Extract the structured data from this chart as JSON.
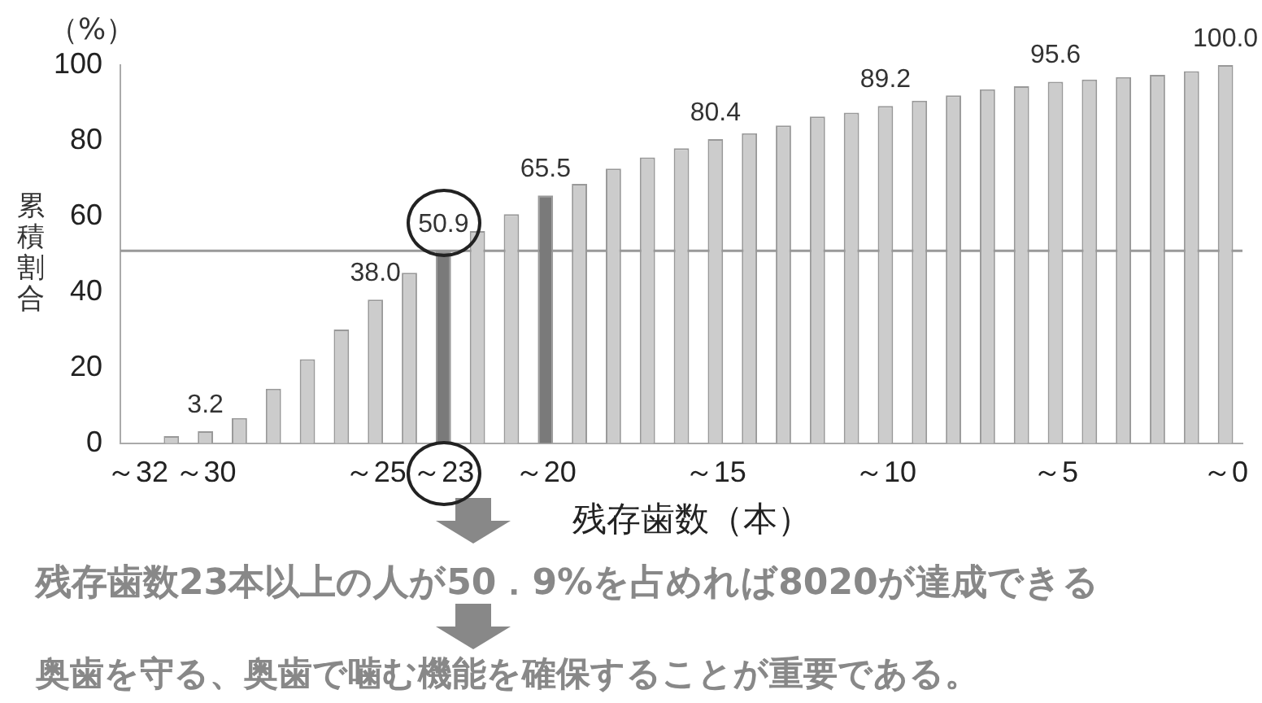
{
  "chart_data": {
    "type": "bar",
    "xlabel": "残存歯数（本）",
    "ylabel": "累積割合",
    "categories": [
      "～32",
      null,
      "～30",
      null,
      null,
      null,
      null,
      "～25",
      null,
      "～23",
      null,
      null,
      "～20",
      null,
      null,
      null,
      null,
      "～15",
      null,
      null,
      null,
      null,
      "～10",
      null,
      null,
      null,
      null,
      "～5",
      null,
      null,
      null,
      null,
      "～0"
    ],
    "values": [
      0,
      1.9,
      3.2,
      6.7,
      14.4,
      22.2,
      30.1,
      38.0,
      45.1,
      50.9,
      56.1,
      60.6,
      65.5,
      68.6,
      72.6,
      75.6,
      78.0,
      80.4,
      82.0,
      84.0,
      86.4,
      87.4,
      89.2,
      90.6,
      92.0,
      93.6,
      94.4,
      95.6,
      96.2,
      96.8,
      97.4,
      98.4,
      100.0
    ],
    "colors": [
      "#cccccc",
      "#cccccc",
      "#cccccc",
      "#cccccc",
      "#cccccc",
      "#cccccc",
      "#cccccc",
      "#cccccc",
      "#cccccc",
      "#7a7a7a",
      "#cccccc",
      "#cccccc",
      "#7a7a7a",
      "#cccccc",
      "#cccccc",
      "#cccccc",
      "#cccccc",
      "#cccccc",
      "#cccccc",
      "#cccccc",
      "#cccccc",
      "#cccccc",
      "#cccccc",
      "#cccccc",
      "#cccccc",
      "#cccccc",
      "#cccccc",
      "#cccccc",
      "#cccccc",
      "#cccccc",
      "#cccccc",
      "#cccccc",
      "#cccccc"
    ],
    "value_labels": [
      null,
      null,
      "3.2",
      null,
      null,
      null,
      null,
      "38.0",
      null,
      "50.9",
      null,
      null,
      "65.5",
      null,
      null,
      null,
      null,
      "80.4",
      null,
      null,
      null,
      null,
      "89.2",
      null,
      null,
      null,
      null,
      "95.6",
      null,
      null,
      null,
      null,
      "100.0"
    ],
    "ylim": [
      0,
      100
    ],
    "yticks": [
      0,
      20,
      40,
      60,
      80,
      100
    ],
    "grid": false,
    "legend": false,
    "ref_lines": [
      {
        "axis": "y",
        "value": 50.9,
        "color": "#999999"
      }
    ],
    "annotations": [
      "（%）",
      "残存歯数23本以上の人が50．9%を占めれば8020が達成できる",
      "奥歯を守る、奥歯で噛む機能を確保することが重要である。"
    ]
  }
}
